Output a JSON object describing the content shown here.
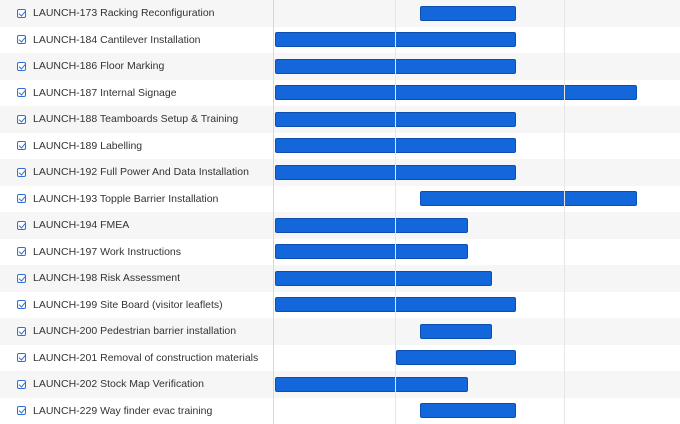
{
  "tasks": [
    {
      "key": "LAUNCH-173",
      "name": "LAUNCH-173 Racking Reconfiguration",
      "checked": true
    },
    {
      "key": "LAUNCH-184",
      "name": "LAUNCH-184 Cantilever Installation",
      "checked": true
    },
    {
      "key": "LAUNCH-186",
      "name": "LAUNCH-186 Floor Marking",
      "checked": true
    },
    {
      "key": "LAUNCH-187",
      "name": "LAUNCH-187 Internal Signage",
      "checked": true
    },
    {
      "key": "LAUNCH-188",
      "name": "LAUNCH-188 Teamboards Setup & Training",
      "checked": true
    },
    {
      "key": "LAUNCH-189",
      "name": "LAUNCH-189 Labelling",
      "checked": true
    },
    {
      "key": "LAUNCH-192",
      "name": "LAUNCH-192 Full Power And Data Installation",
      "checked": true
    },
    {
      "key": "LAUNCH-193",
      "name": "LAUNCH-193 Topple Barrier Installation",
      "checked": true
    },
    {
      "key": "LAUNCH-194",
      "name": "LAUNCH-194 FMEA",
      "checked": true
    },
    {
      "key": "LAUNCH-197",
      "name": "LAUNCH-197 Work Instructions",
      "checked": true
    },
    {
      "key": "LAUNCH-198",
      "name": "LAUNCH-198 Risk Assessment",
      "checked": true
    },
    {
      "key": "LAUNCH-199",
      "name": "LAUNCH-199 Site Board (visitor leaflets)",
      "checked": true
    },
    {
      "key": "LAUNCH-200",
      "name": "LAUNCH-200 Pedestrian barrier installation",
      "checked": true
    },
    {
      "key": "LAUNCH-201",
      "name": "LAUNCH-201 Removal of construction materials",
      "checked": true
    },
    {
      "key": "LAUNCH-202",
      "name": "LAUNCH-202 Stock Map Verification",
      "checked": true
    },
    {
      "key": "LAUNCH-229",
      "name": "LAUNCH-229 Way finder evac training",
      "checked": true
    }
  ],
  "colors": {
    "bar": "#1466db",
    "bar_border": "#0d4fb0",
    "checkbox": "#2f6fd6"
  },
  "icons": {
    "row_checkbox": "checkbox-checked-icon"
  }
}
